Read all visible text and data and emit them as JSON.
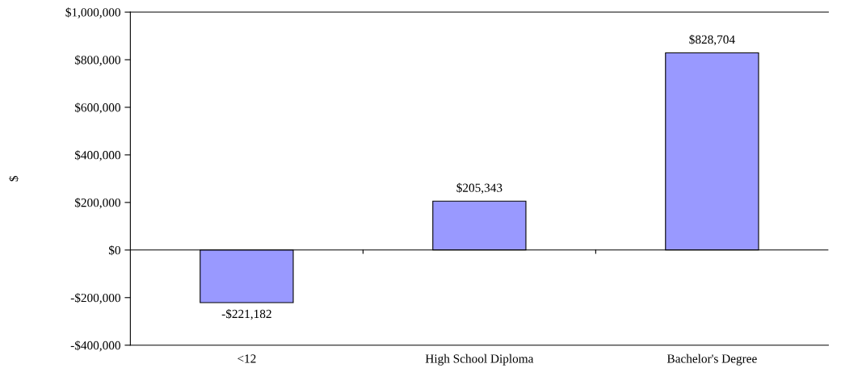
{
  "chart_data": {
    "type": "bar",
    "ylabel": "$",
    "categories": [
      "<12",
      "High School Diploma",
      "Bachelor's Degree"
    ],
    "values": [
      -221182,
      205343,
      828704
    ],
    "value_labels": [
      "-$221,182",
      "$205,343",
      "$828,704"
    ],
    "color": "#9999ff",
    "ylim": [
      -400000,
      1000000
    ],
    "yticks": [
      {
        "value": -400000,
        "label": "-$400,000"
      },
      {
        "value": -200000,
        "label": "-$200,000"
      },
      {
        "value": 0,
        "label": "$0"
      },
      {
        "value": 200000,
        "label": "$200,000"
      },
      {
        "value": 400000,
        "label": "$400,000"
      },
      {
        "value": 600000,
        "label": "$600,000"
      },
      {
        "value": 800000,
        "label": "$800,000"
      },
      {
        "value": 1000000,
        "label": "$1,000,000"
      }
    ],
    "legend": false
  }
}
